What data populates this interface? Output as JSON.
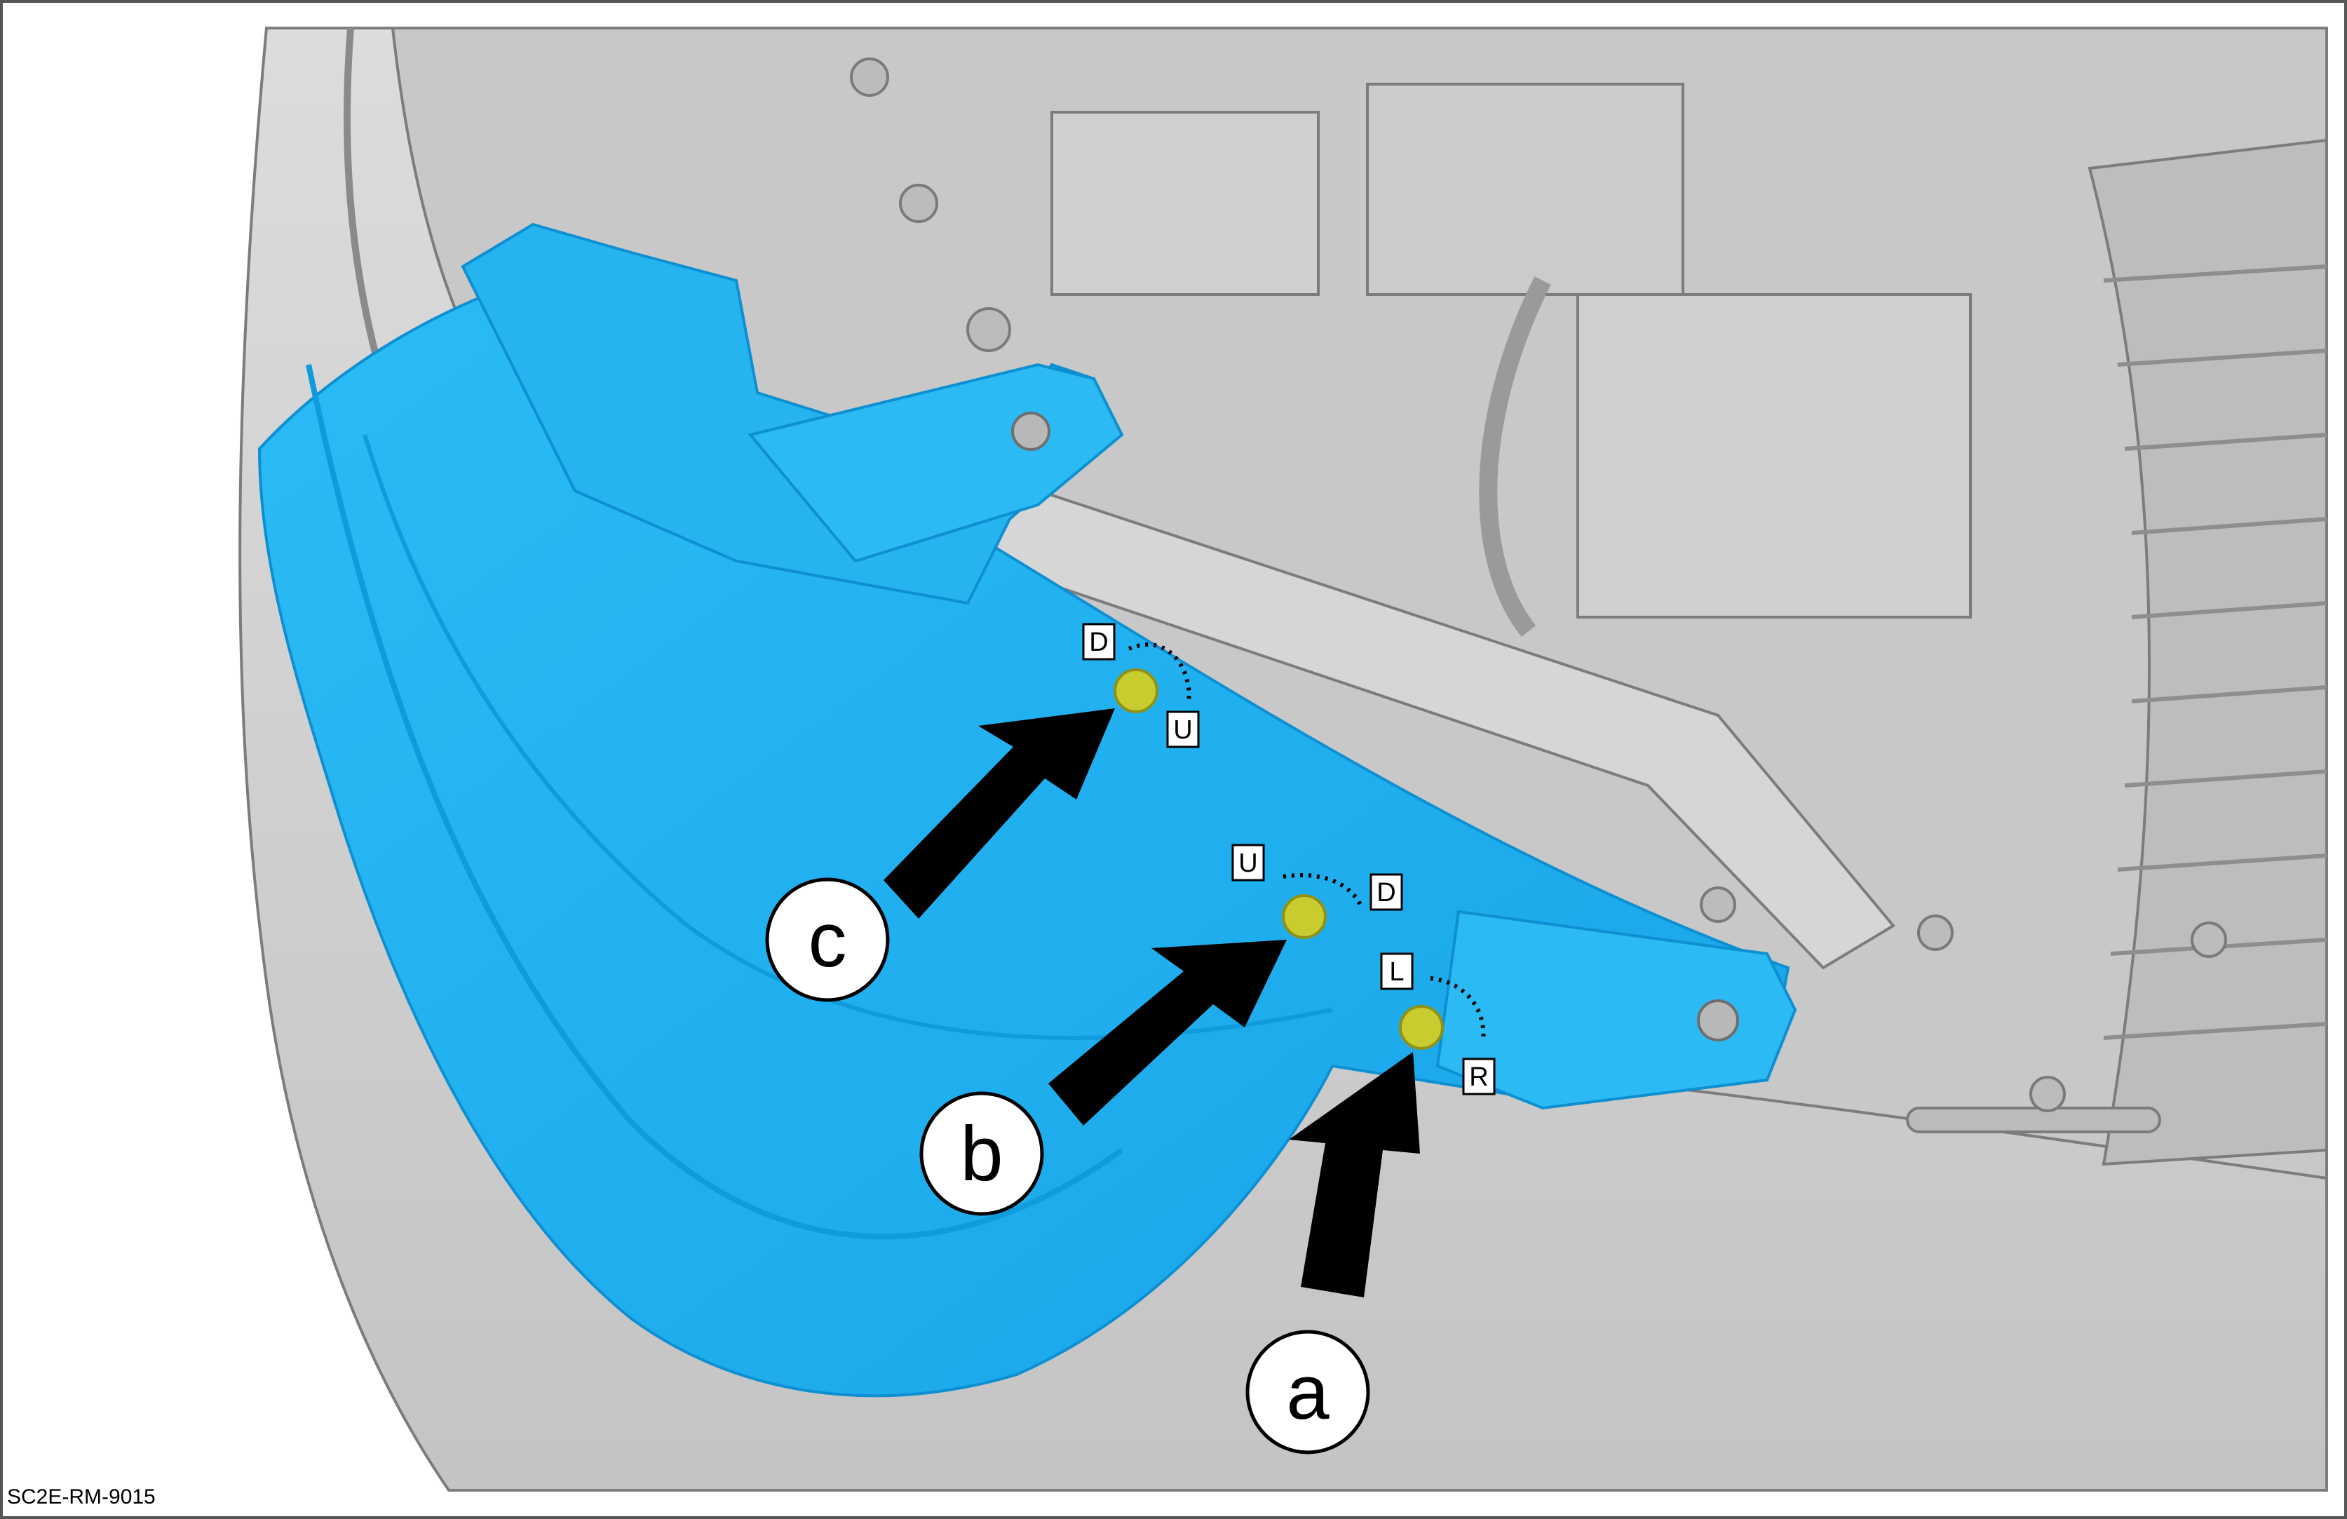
{
  "figure": {
    "code": "SC2E-RM-9015",
    "colors": {
      "border": "#555555",
      "body_gray": "#d2d2d2",
      "body_gray_dark": "#a6a6a6",
      "highlight_blue": "#1fb1f2",
      "highlight_blue_dark": "#0d8fd1",
      "clip_yellow": "#c9cc2e",
      "arrow_black": "#000000"
    }
  },
  "callouts": [
    {
      "letter": "a",
      "icon": "arrow-icon"
    },
    {
      "letter": "b",
      "icon": "arrow-icon"
    },
    {
      "letter": "c",
      "icon": "arrow-icon"
    }
  ],
  "clips": [
    {
      "id": "clip-a",
      "from_label": "L",
      "to_label": "R"
    },
    {
      "id": "clip-b",
      "from_label": "U",
      "to_label": "D"
    },
    {
      "id": "clip-c",
      "from_label": "D",
      "to_label": "U"
    }
  ]
}
